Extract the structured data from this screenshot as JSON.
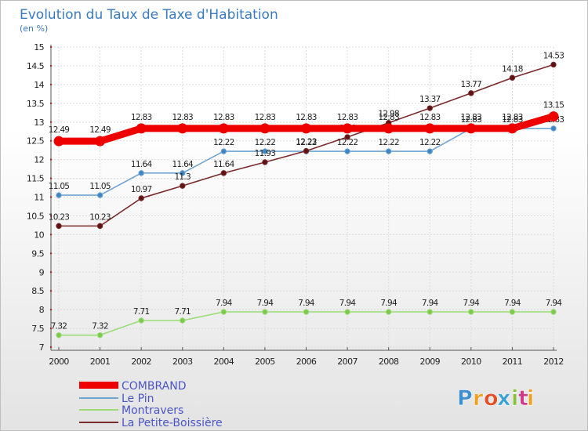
{
  "chart_data": {
    "type": "line",
    "title": "Evolution du Taux de Taxe d'Habitation",
    "subtitle": "(en %)",
    "x": [
      "2000",
      "2001",
      "2002",
      "2003",
      "2004",
      "2005",
      "2006",
      "2007",
      "2008",
      "2009",
      "2010",
      "2011",
      "2012"
    ],
    "ylim": [
      7,
      15
    ],
    "yticks": [
      "7",
      "7.5",
      "8",
      "8.5",
      "9",
      "9.5",
      "10",
      "10.5",
      "11",
      "11.5",
      "12",
      "12.5",
      "13",
      "13.5",
      "14",
      "14.5",
      "15"
    ],
    "grid": true,
    "legend_position": "bottom-left",
    "series": [
      {
        "name": "COMBRAND",
        "color": "#ee0000",
        "values": [
          12.49,
          12.49,
          12.83,
          12.83,
          12.83,
          12.83,
          12.83,
          12.83,
          12.83,
          12.83,
          12.83,
          12.83,
          13.15
        ],
        "labels": [
          "12.49",
          "12.49",
          "12.83",
          "12.83",
          "12.83",
          "12.83",
          "12.83",
          "12.83",
          "12.83",
          "12.83",
          "12.83",
          "12.83",
          "13.15"
        ]
      },
      {
        "name": "Le Pin",
        "color": "#6fa4cf",
        "marker": "#3d86c6",
        "values": [
          11.05,
          11.05,
          11.64,
          11.64,
          12.22,
          12.22,
          12.22,
          12.22,
          12.22,
          12.22,
          12.83,
          12.83,
          12.83
        ],
        "labels": [
          "11.05",
          "11.05",
          "11.64",
          "11.64",
          "12.22",
          "12.22",
          "12.22",
          "12.22",
          "12.22",
          "12.22",
          "12.83",
          "12.83",
          "12.83"
        ]
      },
      {
        "name": "Montravers",
        "color": "#9cdc78",
        "marker": "#7cc94c",
        "values": [
          7.32,
          7.32,
          7.71,
          7.71,
          7.94,
          7.94,
          7.94,
          7.94,
          7.94,
          7.94,
          7.94,
          7.94,
          7.94
        ],
        "labels": [
          "7.32",
          "7.32",
          "7.71",
          "7.71",
          "7.94",
          "7.94",
          "7.94",
          "7.94",
          "7.94",
          "7.94",
          "7.94",
          "7.94",
          "7.94"
        ]
      },
      {
        "name": "La Petite-Boissière",
        "color": "#7a2a2a",
        "marker": "#5e1212",
        "values": [
          10.23,
          10.23,
          10.97,
          11.3,
          11.64,
          11.93,
          12.23,
          12.6,
          12.98,
          13.37,
          13.77,
          14.18,
          14.53
        ],
        "labels": [
          "10.23",
          "10.23",
          "10.97",
          "11.3",
          "11.64",
          "11.93",
          "12.23",
          "12.6",
          "12.98",
          "13.37",
          "13.77",
          "14.18",
          "14.53"
        ]
      }
    ]
  },
  "logo": {
    "text": "Proxiti",
    "colors": [
      "#3d8fd0",
      "#f0a020",
      "#e64f24",
      "#3aa0d8",
      "#88c040",
      "#d03a8a",
      "#f0a020"
    ]
  }
}
